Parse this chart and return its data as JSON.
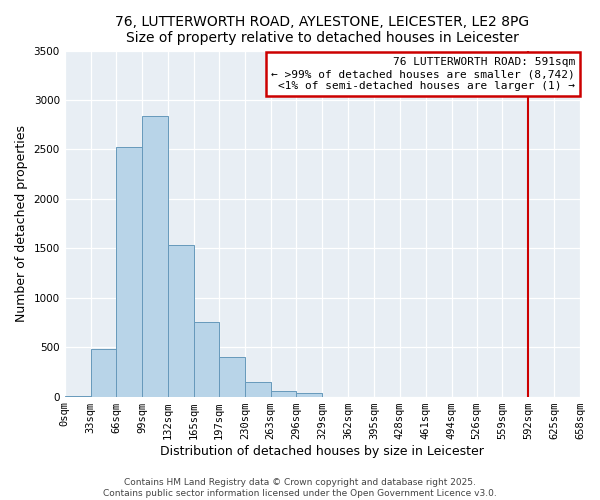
{
  "title": "76, LUTTERWORTH ROAD, AYLESTONE, LEICESTER, LE2 8PG",
  "subtitle": "Size of property relative to detached houses in Leicester",
  "xlabel": "Distribution of detached houses by size in Leicester",
  "ylabel": "Number of detached properties",
  "bin_edges": [
    0,
    33,
    66,
    99,
    132,
    165,
    197,
    230,
    263,
    296,
    329,
    362,
    395,
    428,
    461,
    494,
    526,
    559,
    592,
    625,
    658
  ],
  "bin_labels": [
    "0sqm",
    "33sqm",
    "66sqm",
    "99sqm",
    "132sqm",
    "165sqm",
    "197sqm",
    "230sqm",
    "263sqm",
    "296sqm",
    "329sqm",
    "362sqm",
    "395sqm",
    "428sqm",
    "461sqm",
    "494sqm",
    "526sqm",
    "559sqm",
    "592sqm",
    "625sqm",
    "658sqm"
  ],
  "counts": [
    10,
    480,
    2520,
    2840,
    1530,
    750,
    400,
    150,
    60,
    40,
    0,
    0,
    0,
    0,
    0,
    0,
    0,
    0,
    0,
    0
  ],
  "bar_color": "#b8d4e8",
  "bar_edge_color": "#6699bb",
  "property_line_x": 591,
  "property_line_color": "#cc0000",
  "annotation_line1": "76 LUTTERWORTH ROAD: 591sqm",
  "annotation_line2": "← >99% of detached houses are smaller (8,742)",
  "annotation_line3": "<1% of semi-detached houses are larger (1) →",
  "annotation_box_color": "#cc0000",
  "ylim": [
    0,
    3500
  ],
  "yticks": [
    0,
    500,
    1000,
    1500,
    2000,
    2500,
    3000,
    3500
  ],
  "footer1": "Contains HM Land Registry data © Crown copyright and database right 2025.",
  "footer2": "Contains public sector information licensed under the Open Government Licence v3.0.",
  "background_color": "#ffffff",
  "plot_bg_color": "#e8eef4",
  "title_fontsize": 10,
  "axis_label_fontsize": 9,
  "tick_fontsize": 7.5,
  "annotation_fontsize": 8,
  "footer_fontsize": 6.5
}
